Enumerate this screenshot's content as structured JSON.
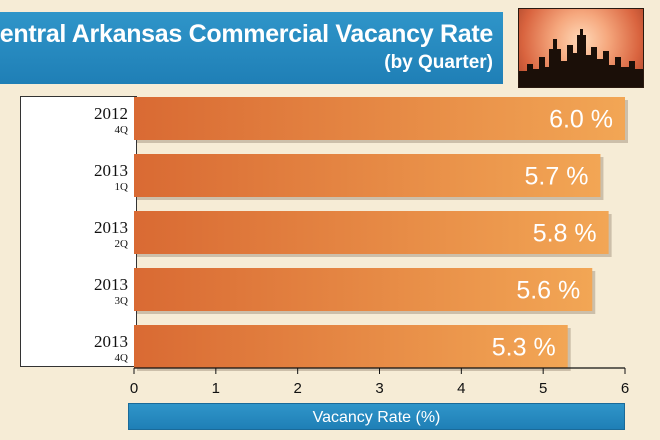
{
  "header": {
    "title": "Central Arkansas Commercial Vacancy Rate",
    "subtitle": "(by Quarter)",
    "image_icon": "city-skyline-icon"
  },
  "colors": {
    "title_bar": "#1f7fb6",
    "bar_left": "#d96a33",
    "bar_right": "#f2a655",
    "background": "#f6ecd6"
  },
  "chart_data": {
    "type": "bar",
    "orientation": "horizontal",
    "categories": [
      {
        "year": "2012",
        "quarter": "4Q"
      },
      {
        "year": "2013",
        "quarter": "1Q"
      },
      {
        "year": "2013",
        "quarter": "2Q"
      },
      {
        "year": "2013",
        "quarter": "3Q"
      },
      {
        "year": "2013",
        "quarter": "4Q"
      }
    ],
    "values": [
      6.0,
      5.7,
      5.8,
      5.6,
      5.3
    ],
    "value_labels": [
      "6.0 %",
      "5.7 %",
      "5.8 %",
      "5.6 %",
      "5.3 %"
    ],
    "xlabel": "Vacancy Rate (%)",
    "xlim": [
      0,
      6
    ],
    "xticks": [
      "0",
      "1",
      "2",
      "3",
      "4",
      "5",
      "6"
    ],
    "grid": false
  }
}
